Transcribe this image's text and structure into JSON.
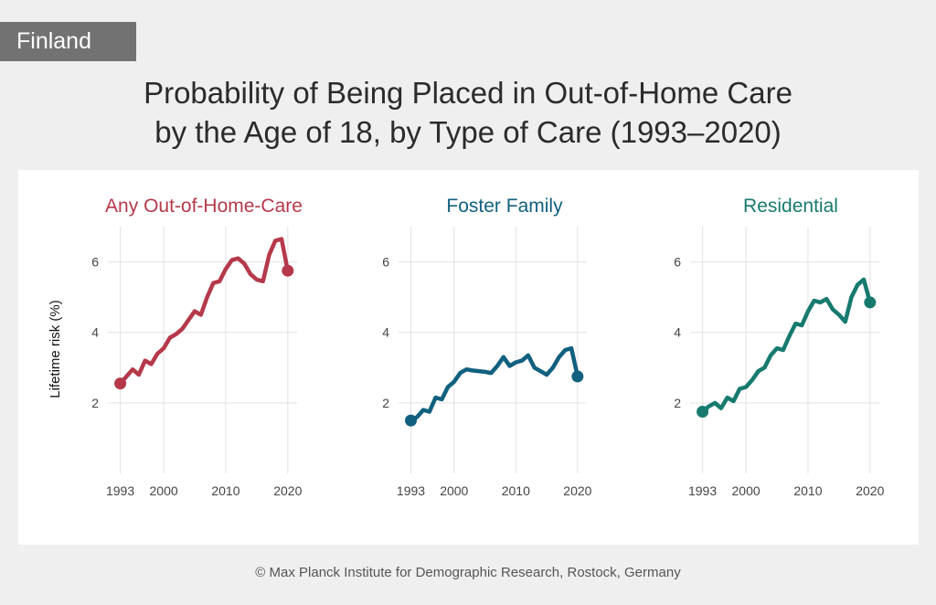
{
  "country_tag": "Finland",
  "title": {
    "line1": "Probability of Being Placed in Out-of-Home Care",
    "line2": "by the Age of 18, by Type of Care (1993–2020)"
  },
  "footer": "© Max Planck Institute for Demographic Research, Rostock, Germany",
  "colors": {
    "any": "#b5394a",
    "foster": "#11607f",
    "residential": "#177a6f",
    "grid": "#e2e2e2",
    "tick_text": "#444444"
  },
  "chart_data": [
    {
      "type": "line",
      "title": "Any Out-of-Home-Care",
      "color_key": "any",
      "ylabel": "Lifetime risk (%)",
      "xlabel": "",
      "xlim": [
        1991,
        2021.5
      ],
      "ylim": [
        0,
        7
      ],
      "xticks": [
        1993,
        2000,
        2010,
        2020
      ],
      "yticks": [
        2,
        4,
        6
      ],
      "x": [
        1993,
        1994,
        1995,
        1996,
        1997,
        1998,
        1999,
        2000,
        2001,
        2002,
        2003,
        2004,
        2005,
        2006,
        2007,
        2008,
        2009,
        2010,
        2011,
        2012,
        2013,
        2014,
        2015,
        2016,
        2017,
        2018,
        2019,
        2020
      ],
      "y": [
        2.55,
        2.75,
        2.95,
        2.8,
        3.2,
        3.1,
        3.4,
        3.55,
        3.85,
        3.95,
        4.1,
        4.35,
        4.6,
        4.5,
        5.0,
        5.4,
        5.45,
        5.8,
        6.05,
        6.1,
        5.95,
        5.65,
        5.5,
        5.45,
        6.2,
        6.6,
        6.65,
        5.75
      ]
    },
    {
      "type": "line",
      "title": "Foster Family",
      "color_key": "foster",
      "ylabel": "",
      "xlabel": "",
      "xlim": [
        1991,
        2021.5
      ],
      "ylim": [
        0,
        7
      ],
      "xticks": [
        1993,
        2000,
        2010,
        2020
      ],
      "yticks": [
        2,
        4,
        6
      ],
      "x": [
        1993,
        1994,
        1995,
        1996,
        1997,
        1998,
        1999,
        2000,
        2001,
        2002,
        2003,
        2004,
        2005,
        2006,
        2007,
        2008,
        2009,
        2010,
        2011,
        2012,
        2013,
        2014,
        2015,
        2016,
        2017,
        2018,
        2019,
        2020
      ],
      "y": [
        1.5,
        1.6,
        1.8,
        1.75,
        2.15,
        2.1,
        2.45,
        2.6,
        2.85,
        2.95,
        2.92,
        2.9,
        2.88,
        2.85,
        3.05,
        3.3,
        3.05,
        3.15,
        3.2,
        3.35,
        3.0,
        2.9,
        2.8,
        3.0,
        3.3,
        3.5,
        3.55,
        2.75
      ]
    },
    {
      "type": "line",
      "title": "Residential",
      "color_key": "residential",
      "ylabel": "",
      "xlabel": "",
      "xlim": [
        1991,
        2021.5
      ],
      "ylim": [
        0,
        7
      ],
      "xticks": [
        1993,
        2000,
        2010,
        2020
      ],
      "yticks": [
        2,
        4,
        6
      ],
      "x": [
        1993,
        1994,
        1995,
        1996,
        1997,
        1998,
        1999,
        2000,
        2001,
        2002,
        2003,
        2004,
        2005,
        2006,
        2007,
        2008,
        2009,
        2010,
        2011,
        2012,
        2013,
        2014,
        2015,
        2016,
        2017,
        2018,
        2019,
        2020
      ],
      "y": [
        1.75,
        1.9,
        2.0,
        1.85,
        2.15,
        2.05,
        2.4,
        2.45,
        2.65,
        2.9,
        3.0,
        3.35,
        3.55,
        3.5,
        3.9,
        4.25,
        4.2,
        4.6,
        4.9,
        4.85,
        4.95,
        4.65,
        4.5,
        4.3,
        5.0,
        5.35,
        5.5,
        4.85
      ]
    }
  ]
}
